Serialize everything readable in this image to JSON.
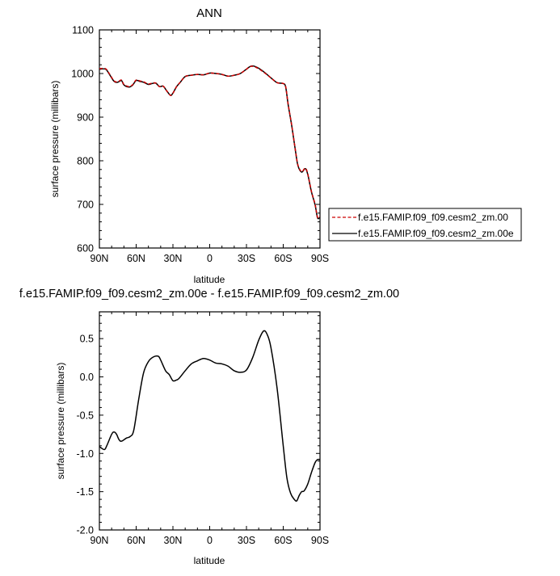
{
  "chart_data": [
    {
      "type": "line",
      "title": "ANN",
      "xlabel": "latitude",
      "ylabel": "surface pressure (millibars)",
      "xlim": [
        90,
        -90
      ],
      "ylim": [
        600,
        1100
      ],
      "xticks": [
        90,
        60,
        30,
        0,
        -30,
        -60,
        -90
      ],
      "xtick_labels": [
        "90N",
        "60N",
        "30N",
        "0",
        "30S",
        "60S",
        "90S"
      ],
      "yticks": [
        600,
        700,
        800,
        900,
        1000,
        1100
      ],
      "ytick_labels": [
        "600",
        "700",
        "800",
        "900",
        "1000",
        "1100"
      ],
      "legend_placement": "right",
      "series": [
        {
          "name": "f.e15.FAMIP.f09_f09.cesm2_zm.00",
          "color": "#cc0000",
          "style": "dashed",
          "x": [
            90,
            85,
            82,
            78,
            75,
            72,
            70,
            66,
            63,
            60,
            57,
            54,
            50,
            47,
            44,
            41,
            38,
            35,
            32,
            30,
            27,
            24,
            20,
            15,
            10,
            5,
            0,
            -5,
            -10,
            -15,
            -20,
            -25,
            -30,
            -33,
            -36,
            -40,
            -45,
            -50,
            -55,
            -60,
            -62,
            -64,
            -67,
            -70,
            -72,
            -75,
            -78,
            -80,
            -83,
            -86,
            -88,
            -90
          ],
          "y": [
            1011,
            1011,
            1000,
            983,
            981,
            985,
            975,
            970,
            974,
            985,
            983,
            981,
            976,
            978,
            978,
            970,
            971,
            960,
            950,
            955,
            970,
            980,
            993,
            996,
            998,
            997,
            1001,
            1000,
            998,
            994,
            996,
            1000,
            1010,
            1016,
            1016,
            1011,
            1001,
            990,
            979,
            977,
            970,
            930,
            880,
            823,
            790,
            775,
            783,
            770,
            730,
            700,
            670,
            672
          ]
        },
        {
          "name": "f.e15.FAMIP.f09_f09.cesm2_zm.00e",
          "color": "#000000",
          "style": "solid",
          "x": [
            90,
            85,
            82,
            78,
            75,
            72,
            70,
            66,
            63,
            60,
            57,
            54,
            50,
            47,
            44,
            41,
            38,
            35,
            32,
            30,
            27,
            24,
            20,
            15,
            10,
            5,
            0,
            -5,
            -10,
            -15,
            -20,
            -25,
            -30,
            -33,
            -36,
            -40,
            -45,
            -50,
            -55,
            -60,
            -62,
            -64,
            -67,
            -70,
            -72,
            -75,
            -78,
            -80,
            -83,
            -86,
            -88,
            -90
          ],
          "y": [
            1010,
            1010,
            999,
            982,
            980,
            984,
            974,
            969,
            973,
            984,
            982,
            980,
            975,
            977,
            978,
            970,
            971,
            960,
            950,
            955,
            970,
            980,
            993,
            996,
            998,
            997,
            1001,
            1000,
            998,
            994,
            996,
            1000,
            1010,
            1016,
            1017,
            1012,
            1002,
            990,
            979,
            977,
            969,
            929,
            879,
            822,
            789,
            774,
            782,
            769,
            729,
            699,
            669,
            671
          ]
        }
      ]
    },
    {
      "type": "line",
      "title": "f.e15.FAMIP.f09_f09.cesm2_zm.00e - f.e15.FAMIP.f09_f09.cesm2_zm.00",
      "xlabel": "latitude",
      "ylabel": "surface pressure (millibars)",
      "xlim": [
        90,
        -90
      ],
      "ylim": [
        -2.0,
        0.85
      ],
      "xticks": [
        90,
        60,
        30,
        0,
        -30,
        -60,
        -90
      ],
      "xtick_labels": [
        "90N",
        "60N",
        "30N",
        "0",
        "30S",
        "60S",
        "90S"
      ],
      "yticks": [
        -2.0,
        -1.5,
        -1.0,
        -0.5,
        0.0,
        0.5
      ],
      "ytick_labels": [
        "-2.0",
        "-1.5",
        "-1.0",
        "-0.5",
        "0.0",
        "0.5"
      ],
      "series": [
        {
          "color": "#000000",
          "style": "solid",
          "x": [
            90,
            86,
            84,
            80,
            78,
            76,
            74,
            72,
            68,
            65,
            62,
            58,
            54,
            50,
            46,
            42,
            40,
            36,
            33,
            30,
            27,
            25,
            20,
            15,
            10,
            5,
            0,
            -5,
            -10,
            -15,
            -20,
            -25,
            -30,
            -35,
            -40,
            -44,
            -47,
            -50,
            -55,
            -60,
            -63,
            -66,
            -69,
            -71,
            -73,
            -75,
            -77,
            -80,
            -83,
            -86,
            -88,
            -90
          ],
          "y": [
            -0.91,
            -0.95,
            -0.9,
            -0.75,
            -0.72,
            -0.75,
            -0.82,
            -0.84,
            -0.8,
            -0.78,
            -0.7,
            -0.3,
            0.05,
            0.2,
            0.26,
            0.27,
            0.22,
            0.08,
            0.03,
            -0.05,
            -0.04,
            -0.02,
            0.08,
            0.17,
            0.21,
            0.24,
            0.22,
            0.18,
            0.17,
            0.14,
            0.08,
            0.06,
            0.09,
            0.25,
            0.48,
            0.6,
            0.55,
            0.38,
            -0.15,
            -0.9,
            -1.32,
            -1.52,
            -1.6,
            -1.62,
            -1.55,
            -1.5,
            -1.49,
            -1.4,
            -1.25,
            -1.12,
            -1.08,
            -1.08
          ]
        }
      ]
    }
  ]
}
